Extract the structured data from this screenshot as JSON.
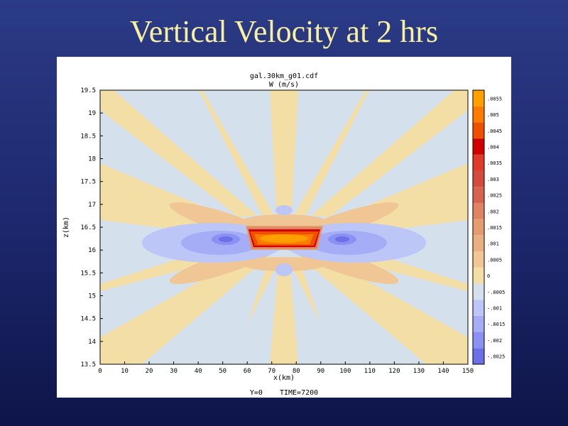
{
  "slide": {
    "title": "Vertical Velocity at 2 hrs"
  },
  "chart_data": {
    "type": "heatmap",
    "title": "gal.30km_g01.cdf",
    "subtitle": "W (m/s)",
    "xlabel": "x(km)",
    "ylabel": "z(km)",
    "xlim": [
      0,
      150
    ],
    "ylim": [
      13.5,
      19.5
    ],
    "x_ticks": [
      "0",
      "10",
      "20",
      "30",
      "40",
      "50",
      "60",
      "70",
      "80",
      "90",
      "100",
      "110",
      "120",
      "130",
      "140",
      "150"
    ],
    "y_ticks": [
      "13.5",
      "14",
      "14.5",
      "15",
      "15.5",
      "16",
      "16.5",
      "17",
      "17.5",
      "18",
      "18.5",
      "19",
      "19.5"
    ],
    "footer": "Y=0    TIME=7200",
    "colorbar": {
      "levels": [
        -0.0025,
        -0.002,
        -0.0015,
        -0.001,
        -0.0005,
        0,
        0.0005,
        0.001,
        0.0015,
        0.002,
        0.0025,
        0.003,
        0.0035,
        0.004,
        0.0045,
        0.005,
        0.0055
      ],
      "labels": [
        "-.0025",
        "-.002",
        "-.0015",
        "-.001",
        "-.0005",
        "0",
        ".0005",
        ".001",
        ".0015",
        ".002",
        ".0025",
        ".003",
        ".0035",
        ".004",
        ".0045",
        ".005",
        ".0055"
      ],
      "colors": [
        "#6d6fe8",
        "#8b90f3",
        "#a5adf6",
        "#bcc6f7",
        "#d5e0ed",
        "#f3dea6",
        "#efc694",
        "#ebb081",
        "#e49c70",
        "#de8462",
        "#d66350",
        "#d44a3d",
        "#e03b2a",
        "#d00000",
        "#ee5000",
        "#ff7a00",
        "#ffa000"
      ]
    },
    "features": [
      {
        "name": "positive core",
        "x_range": [
          60,
          90
        ],
        "z_range": [
          16.0,
          16.5
        ],
        "w_max": 0.0055
      },
      {
        "name": "negative lobe west",
        "x_center": 50,
        "z_center": 16.25,
        "w_min": -0.0025
      },
      {
        "name": "negative lobe east",
        "x_center": 100,
        "z_center": 16.25,
        "w_min": -0.0025
      }
    ]
  }
}
